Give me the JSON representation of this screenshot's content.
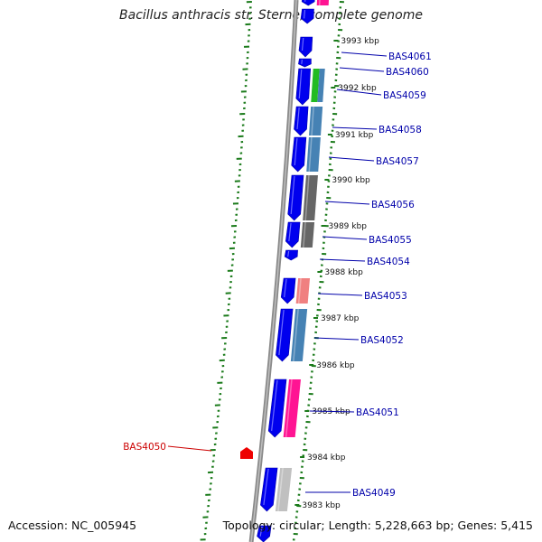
{
  "title": "Bacillus anthracis str. Sterne, complete genome",
  "footer": {
    "accession": "Accession: NC_005945",
    "summary": "Topology: circular; Length: 5,228,663 bp; Genes: 5,415"
  },
  "kbp_ticks": [
    "3993 kbp",
    "3992 kbp",
    "3991 kbp",
    "3990 kbp",
    "3989 kbp",
    "3988 kbp",
    "3987 kbp",
    "3986 kbp",
    "3985 kbp",
    "3984 kbp",
    "3983 kbp"
  ],
  "gene_labels": [
    "BAS4061",
    "BAS4060",
    "BAS4059",
    "BAS4058",
    "BAS4057",
    "BAS4056",
    "BAS4055",
    "BAS4054",
    "BAS4053",
    "BAS4052",
    "BAS4051",
    "BAS4050",
    "BAS4049"
  ],
  "colors": {
    "label_blue": "#0000aa",
    "label_red": "#cc0000",
    "tick_green": "#1a7a1a",
    "strand_blue": "#0000ee",
    "cog_green": "#22bb22",
    "cog_steel": "#4682b4",
    "cog_gray": "#666666",
    "cog_salmon": "#f08080",
    "cog_pink": "#ff1493",
    "cog_silver": "#c0c0c0",
    "red_gene": "#ee0000"
  }
}
